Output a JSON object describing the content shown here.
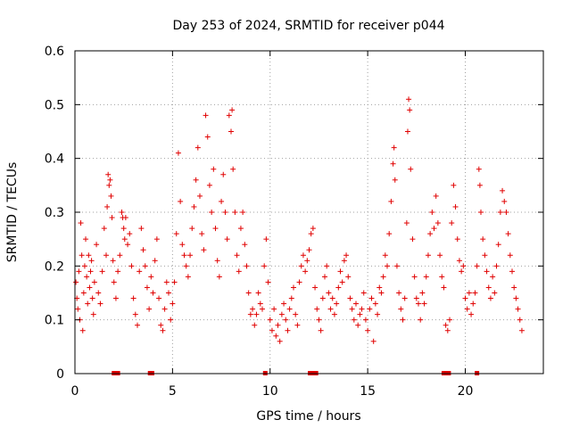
{
  "chart_data": {
    "type": "scatter",
    "title": "Day 253 of 2024, SRMTID for receiver p044",
    "xlabel": "GPS time / hours",
    "ylabel": "SRMTID / TECUs",
    "xlim": [
      0,
      24
    ],
    "ylim": [
      0,
      0.6
    ],
    "x_ticks": [
      0,
      5,
      10,
      15,
      20
    ],
    "x_tick_labels": [
      "0",
      "5",
      "10",
      "15",
      "20"
    ],
    "y_ticks": [
      0,
      0.1,
      0.2,
      0.3,
      0.4,
      0.5,
      0.6
    ],
    "y_tick_labels": [
      "0",
      "0.1",
      "0.2",
      "0.3",
      "0.4",
      "0.5",
      "0.6"
    ],
    "grid": true,
    "marker": "plus",
    "color": "#e00000",
    "series": [
      {
        "name": "SRMTID",
        "points": [
          [
            0.05,
            0.17
          ],
          [
            0.1,
            0.14
          ],
          [
            0.15,
            0.12
          ],
          [
            0.2,
            0.19
          ],
          [
            0.25,
            0.1
          ],
          [
            0.3,
            0.28
          ],
          [
            0.35,
            0.22
          ],
          [
            0.4,
            0.08
          ],
          [
            0.45,
            0.15
          ],
          [
            0.5,
            0.2
          ],
          [
            0.55,
            0.25
          ],
          [
            0.6,
            0.18
          ],
          [
            0.65,
            0.13
          ],
          [
            0.7,
            0.22
          ],
          [
            0.75,
            0.16
          ],
          [
            0.8,
            0.19
          ],
          [
            0.85,
            0.21
          ],
          [
            0.9,
            0.14
          ],
          [
            0.95,
            0.11
          ],
          [
            1.0,
            0.17
          ],
          [
            1.1,
            0.24
          ],
          [
            1.2,
            0.15
          ],
          [
            1.3,
            0.13
          ],
          [
            1.4,
            0.19
          ],
          [
            1.5,
            0.27
          ],
          [
            1.6,
            0.22
          ],
          [
            1.65,
            0.31
          ],
          [
            1.7,
            0.37
          ],
          [
            1.75,
            0.35
          ],
          [
            1.8,
            0.36
          ],
          [
            1.85,
            0.33
          ],
          [
            1.9,
            0.29
          ],
          [
            1.95,
            0.21
          ],
          [
            2.0,
            0.17
          ],
          [
            2.1,
            0.14
          ],
          [
            2.2,
            0.19
          ],
          [
            2.3,
            0.22
          ],
          [
            2.4,
            0.3
          ],
          [
            2.45,
            0.29
          ],
          [
            2.5,
            0.27
          ],
          [
            2.55,
            0.25
          ],
          [
            2.6,
            0.29
          ],
          [
            2.7,
            0.24
          ],
          [
            2.8,
            0.26
          ],
          [
            2.9,
            0.2
          ],
          [
            3.0,
            0.14
          ],
          [
            3.1,
            0.11
          ],
          [
            3.2,
            0.09
          ],
          [
            3.3,
            0.19
          ],
          [
            3.4,
            0.27
          ],
          [
            3.5,
            0.23
          ],
          [
            3.6,
            0.2
          ],
          [
            3.7,
            0.16
          ],
          [
            3.8,
            0.12
          ],
          [
            3.9,
            0.18
          ],
          [
            4.0,
            0.15
          ],
          [
            4.1,
            0.21
          ],
          [
            4.2,
            0.25
          ],
          [
            4.3,
            0.14
          ],
          [
            4.4,
            0.09
          ],
          [
            4.5,
            0.08
          ],
          [
            4.6,
            0.12
          ],
          [
            4.7,
            0.17
          ],
          [
            4.8,
            0.15
          ],
          [
            4.9,
            0.1
          ],
          [
            5.0,
            0.13
          ],
          [
            5.1,
            0.17
          ],
          [
            5.2,
            0.26
          ],
          [
            5.3,
            0.41
          ],
          [
            5.4,
            0.32
          ],
          [
            5.5,
            0.24
          ],
          [
            5.6,
            0.22
          ],
          [
            5.7,
            0.2
          ],
          [
            5.8,
            0.18
          ],
          [
            5.9,
            0.22
          ],
          [
            6.0,
            0.27
          ],
          [
            6.1,
            0.31
          ],
          [
            6.2,
            0.36
          ],
          [
            6.3,
            0.42
          ],
          [
            6.4,
            0.33
          ],
          [
            6.5,
            0.26
          ],
          [
            6.6,
            0.23
          ],
          [
            6.7,
            0.48
          ],
          [
            6.8,
            0.44
          ],
          [
            6.9,
            0.35
          ],
          [
            7.0,
            0.3
          ],
          [
            7.1,
            0.38
          ],
          [
            7.2,
            0.27
          ],
          [
            7.3,
            0.21
          ],
          [
            7.4,
            0.18
          ],
          [
            7.5,
            0.32
          ],
          [
            7.6,
            0.37
          ],
          [
            7.7,
            0.3
          ],
          [
            7.8,
            0.25
          ],
          [
            7.9,
            0.48
          ],
          [
            8.0,
            0.45
          ],
          [
            8.05,
            0.49
          ],
          [
            8.1,
            0.38
          ],
          [
            8.2,
            0.3
          ],
          [
            8.3,
            0.22
          ],
          [
            8.4,
            0.19
          ],
          [
            8.5,
            0.27
          ],
          [
            8.6,
            0.3
          ],
          [
            8.7,
            0.24
          ],
          [
            8.8,
            0.2
          ],
          [
            8.9,
            0.15
          ],
          [
            9.0,
            0.11
          ],
          [
            9.1,
            0.12
          ],
          [
            9.2,
            0.09
          ],
          [
            9.3,
            0.11
          ],
          [
            9.4,
            0.15
          ],
          [
            9.5,
            0.13
          ],
          [
            9.6,
            0.12
          ],
          [
            9.7,
            0.2
          ],
          [
            9.8,
            0.25
          ],
          [
            9.9,
            0.17
          ],
          [
            10.0,
            0.1
          ],
          [
            10.1,
            0.08
          ],
          [
            10.2,
            0.12
          ],
          [
            10.3,
            0.07
          ],
          [
            10.4,
            0.09
          ],
          [
            10.5,
            0.06
          ],
          [
            10.6,
            0.11
          ],
          [
            10.7,
            0.13
          ],
          [
            10.8,
            0.1
          ],
          [
            10.9,
            0.08
          ],
          [
            11.0,
            0.12
          ],
          [
            11.1,
            0.14
          ],
          [
            11.2,
            0.16
          ],
          [
            11.3,
            0.11
          ],
          [
            11.4,
            0.09
          ],
          [
            11.5,
            0.17
          ],
          [
            11.6,
            0.2
          ],
          [
            11.7,
            0.22
          ],
          [
            11.8,
            0.19
          ],
          [
            11.9,
            0.21
          ],
          [
            12.0,
            0.23
          ],
          [
            12.1,
            0.26
          ],
          [
            12.2,
            0.27
          ],
          [
            12.3,
            0.16
          ],
          [
            12.4,
            0.12
          ],
          [
            12.5,
            0.1
          ],
          [
            12.6,
            0.08
          ],
          [
            12.7,
            0.14
          ],
          [
            12.8,
            0.18
          ],
          [
            12.9,
            0.2
          ],
          [
            13.0,
            0.15
          ],
          [
            13.1,
            0.12
          ],
          [
            13.2,
            0.14
          ],
          [
            13.3,
            0.11
          ],
          [
            13.4,
            0.13
          ],
          [
            13.5,
            0.16
          ],
          [
            13.6,
            0.19
          ],
          [
            13.7,
            0.17
          ],
          [
            13.8,
            0.21
          ],
          [
            13.9,
            0.22
          ],
          [
            14.0,
            0.18
          ],
          [
            14.1,
            0.14
          ],
          [
            14.2,
            0.12
          ],
          [
            14.3,
            0.1
          ],
          [
            14.4,
            0.13
          ],
          [
            14.5,
            0.09
          ],
          [
            14.6,
            0.11
          ],
          [
            14.7,
            0.12
          ],
          [
            14.8,
            0.15
          ],
          [
            14.9,
            0.1
          ],
          [
            15.0,
            0.08
          ],
          [
            15.1,
            0.12
          ],
          [
            15.2,
            0.14
          ],
          [
            15.3,
            0.06
          ],
          [
            15.4,
            0.13
          ],
          [
            15.5,
            0.11
          ],
          [
            15.6,
            0.16
          ],
          [
            15.7,
            0.15
          ],
          [
            15.8,
            0.18
          ],
          [
            15.9,
            0.22
          ],
          [
            16.0,
            0.2
          ],
          [
            16.1,
            0.26
          ],
          [
            16.2,
            0.32
          ],
          [
            16.3,
            0.39
          ],
          [
            16.35,
            0.42
          ],
          [
            16.4,
            0.36
          ],
          [
            16.5,
            0.2
          ],
          [
            16.6,
            0.15
          ],
          [
            16.7,
            0.12
          ],
          [
            16.8,
            0.1
          ],
          [
            16.9,
            0.14
          ],
          [
            17.0,
            0.28
          ],
          [
            17.05,
            0.45
          ],
          [
            17.1,
            0.51
          ],
          [
            17.15,
            0.49
          ],
          [
            17.2,
            0.38
          ],
          [
            17.3,
            0.25
          ],
          [
            17.4,
            0.18
          ],
          [
            17.5,
            0.14
          ],
          [
            17.6,
            0.13
          ],
          [
            17.7,
            0.1
          ],
          [
            17.8,
            0.15
          ],
          [
            17.9,
            0.13
          ],
          [
            18.0,
            0.18
          ],
          [
            18.1,
            0.22
          ],
          [
            18.2,
            0.26
          ],
          [
            18.3,
            0.3
          ],
          [
            18.4,
            0.27
          ],
          [
            18.5,
            0.33
          ],
          [
            18.6,
            0.28
          ],
          [
            18.7,
            0.22
          ],
          [
            18.8,
            0.18
          ],
          [
            18.9,
            0.16
          ],
          [
            19.0,
            0.09
          ],
          [
            19.1,
            0.08
          ],
          [
            19.2,
            0.1
          ],
          [
            19.3,
            0.28
          ],
          [
            19.4,
            0.35
          ],
          [
            19.5,
            0.31
          ],
          [
            19.6,
            0.25
          ],
          [
            19.7,
            0.21
          ],
          [
            19.8,
            0.19
          ],
          [
            19.9,
            0.2
          ],
          [
            20.0,
            0.14
          ],
          [
            20.1,
            0.12
          ],
          [
            20.2,
            0.15
          ],
          [
            20.3,
            0.11
          ],
          [
            20.4,
            0.13
          ],
          [
            20.5,
            0.15
          ],
          [
            20.6,
            0.2
          ],
          [
            20.7,
            0.38
          ],
          [
            20.75,
            0.35
          ],
          [
            20.8,
            0.3
          ],
          [
            20.9,
            0.25
          ],
          [
            21.0,
            0.22
          ],
          [
            21.1,
            0.19
          ],
          [
            21.2,
            0.16
          ],
          [
            21.3,
            0.14
          ],
          [
            21.4,
            0.18
          ],
          [
            21.5,
            0.15
          ],
          [
            21.6,
            0.2
          ],
          [
            21.7,
            0.24
          ],
          [
            21.8,
            0.3
          ],
          [
            21.9,
            0.34
          ],
          [
            22.0,
            0.32
          ],
          [
            22.1,
            0.3
          ],
          [
            22.2,
            0.26
          ],
          [
            22.3,
            0.22
          ],
          [
            22.4,
            0.19
          ],
          [
            22.5,
            0.16
          ],
          [
            22.6,
            0.14
          ],
          [
            22.7,
            0.12
          ],
          [
            22.8,
            0.1
          ],
          [
            22.9,
            0.08
          ]
        ]
      }
    ],
    "zero_points_x": [
      2.0,
      2.1,
      2.2,
      3.85,
      3.95,
      9.75,
      12.05,
      12.2,
      12.35,
      18.9,
      19.0,
      19.15,
      20.6
    ]
  }
}
